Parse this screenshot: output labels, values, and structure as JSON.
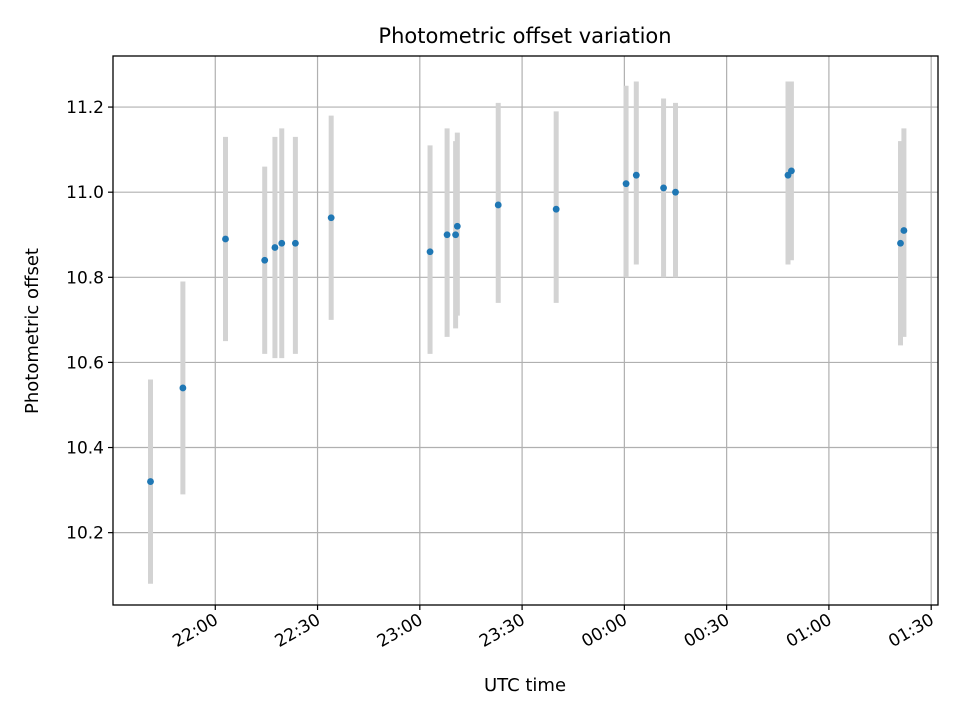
{
  "chart_data": {
    "type": "scatter",
    "title": "Photometric offset variation",
    "xlabel": "UTC time",
    "ylabel": "Photometric offset",
    "grid": true,
    "x_unit": "UTC time (HH:MM, night spanning midnight)",
    "xlim": [
      "21:30",
      "01:32"
    ],
    "ylim": [
      10.03,
      11.32
    ],
    "x_ticks": [
      "22:00",
      "22:30",
      "23:00",
      "23:30",
      "00:00",
      "00:30",
      "01:00",
      "01:30"
    ],
    "y_ticks": [
      "10.2",
      "10.4",
      "10.6",
      "10.8",
      "11.0",
      "11.2"
    ],
    "marker_color": "#1f77b4",
    "errorbar_color": "#d3d3d3",
    "points": [
      {
        "x": "21:41:00",
        "y": 10.32,
        "ylow": 10.08,
        "yhigh": 10.56
      },
      {
        "x": "21:50:30",
        "y": 10.54,
        "ylow": 10.29,
        "yhigh": 10.79
      },
      {
        "x": "22:03:00",
        "y": 10.89,
        "ylow": 10.65,
        "yhigh": 11.13
      },
      {
        "x": "22:14:30",
        "y": 10.84,
        "ylow": 10.62,
        "yhigh": 11.06
      },
      {
        "x": "22:17:30",
        "y": 10.87,
        "ylow": 10.61,
        "yhigh": 11.13
      },
      {
        "x": "22:19:30",
        "y": 10.88,
        "ylow": 10.61,
        "yhigh": 11.15
      },
      {
        "x": "22:23:30",
        "y": 10.88,
        "ylow": 10.62,
        "yhigh": 11.13
      },
      {
        "x": "22:34:00",
        "y": 10.94,
        "ylow": 10.7,
        "yhigh": 11.18
      },
      {
        "x": "23:03:00",
        "y": 10.86,
        "ylow": 10.62,
        "yhigh": 11.11
      },
      {
        "x": "23:08:00",
        "y": 10.9,
        "ylow": 10.66,
        "yhigh": 11.15
      },
      {
        "x": "23:10:30",
        "y": 10.9,
        "ylow": 10.68,
        "yhigh": 11.12
      },
      {
        "x": "23:11:00",
        "y": 10.92,
        "ylow": 10.71,
        "yhigh": 11.14
      },
      {
        "x": "23:23:00",
        "y": 10.97,
        "ylow": 10.74,
        "yhigh": 11.21
      },
      {
        "x": "23:40:00",
        "y": 10.96,
        "ylow": 10.74,
        "yhigh": 11.19
      },
      {
        "x": "00:00:30",
        "y": 11.02,
        "ylow": 10.8,
        "yhigh": 11.25
      },
      {
        "x": "00:03:30",
        "y": 11.04,
        "ylow": 10.83,
        "yhigh": 11.26
      },
      {
        "x": "00:11:30",
        "y": 11.01,
        "ylow": 10.8,
        "yhigh": 11.22
      },
      {
        "x": "00:15:00",
        "y": 11.0,
        "ylow": 10.8,
        "yhigh": 11.21
      },
      {
        "x": "00:48:00",
        "y": 11.04,
        "ylow": 10.83,
        "yhigh": 11.26
      },
      {
        "x": "00:49:00",
        "y": 11.05,
        "ylow": 10.84,
        "yhigh": 11.26
      },
      {
        "x": "01:21:00",
        "y": 10.88,
        "ylow": 10.64,
        "yhigh": 11.12
      },
      {
        "x": "01:22:00",
        "y": 10.91,
        "ylow": 10.66,
        "yhigh": 11.15
      }
    ]
  }
}
